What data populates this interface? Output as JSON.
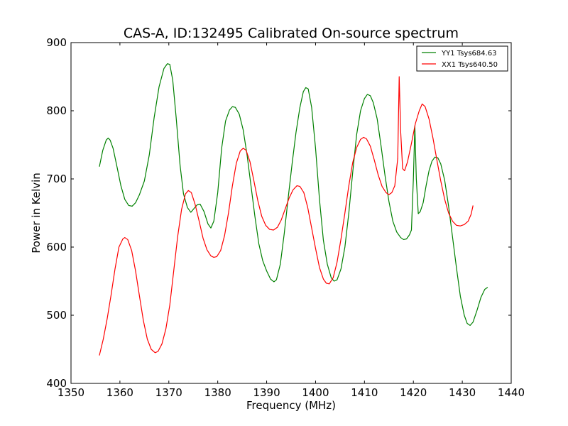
{
  "chart_data": {
    "type": "line",
    "title": "CAS-A, ID:132495 Calibrated On-source spectrum",
    "xlabel": "Frequency (MHz)",
    "ylabel": "Power in Kelvin",
    "xlim": [
      1350,
      1440
    ],
    "ylim": [
      400,
      900
    ],
    "xticks": [
      1350,
      1360,
      1370,
      1380,
      1390,
      1400,
      1410,
      1420,
      1430,
      1440
    ],
    "yticks": [
      400,
      500,
      600,
      700,
      800,
      900
    ],
    "grid": false,
    "legend_position": "top-right",
    "series": [
      {
        "name": "YY1 Tsys684.63",
        "color": "#008000",
        "points": [
          [
            1355.8,
            718
          ],
          [
            1356.5,
            742
          ],
          [
            1357.2,
            757
          ],
          [
            1357.6,
            760
          ],
          [
            1358.0,
            757
          ],
          [
            1358.6,
            745
          ],
          [
            1359.4,
            718
          ],
          [
            1360.2,
            690
          ],
          [
            1361.0,
            670
          ],
          [
            1361.8,
            661
          ],
          [
            1362.5,
            660
          ],
          [
            1363.2,
            665
          ],
          [
            1364.0,
            677
          ],
          [
            1365.0,
            697
          ],
          [
            1366.0,
            735
          ],
          [
            1367.0,
            790
          ],
          [
            1368.0,
            835
          ],
          [
            1369.0,
            862
          ],
          [
            1369.7,
            869
          ],
          [
            1370.2,
            868
          ],
          [
            1370.8,
            845
          ],
          [
            1371.5,
            790
          ],
          [
            1372.3,
            720
          ],
          [
            1373.0,
            678
          ],
          [
            1373.8,
            658
          ],
          [
            1374.5,
            651
          ],
          [
            1375.2,
            657
          ],
          [
            1375.8,
            662
          ],
          [
            1376.4,
            663
          ],
          [
            1377.2,
            652
          ],
          [
            1378.0,
            634
          ],
          [
            1378.6,
            628
          ],
          [
            1379.2,
            638
          ],
          [
            1380.0,
            680
          ],
          [
            1380.8,
            745
          ],
          [
            1381.6,
            785
          ],
          [
            1382.4,
            801
          ],
          [
            1383.0,
            806
          ],
          [
            1383.6,
            805
          ],
          [
            1384.4,
            795
          ],
          [
            1385.2,
            772
          ],
          [
            1386.0,
            735
          ],
          [
            1386.8,
            690
          ],
          [
            1387.6,
            645
          ],
          [
            1388.4,
            605
          ],
          [
            1389.2,
            580
          ],
          [
            1390.0,
            565
          ],
          [
            1390.8,
            553
          ],
          [
            1391.5,
            549
          ],
          [
            1392.0,
            552
          ],
          [
            1392.8,
            575
          ],
          [
            1393.6,
            620
          ],
          [
            1394.4,
            672
          ],
          [
            1395.2,
            722
          ],
          [
            1396.0,
            768
          ],
          [
            1396.8,
            805
          ],
          [
            1397.5,
            828
          ],
          [
            1398.0,
            834
          ],
          [
            1398.5,
            832
          ],
          [
            1399.2,
            805
          ],
          [
            1400.0,
            745
          ],
          [
            1400.8,
            670
          ],
          [
            1401.6,
            610
          ],
          [
            1402.4,
            575
          ],
          [
            1403.2,
            555
          ],
          [
            1403.8,
            550
          ],
          [
            1404.4,
            552
          ],
          [
            1405.2,
            568
          ],
          [
            1406.0,
            600
          ],
          [
            1406.8,
            650
          ],
          [
            1407.6,
            710
          ],
          [
            1408.4,
            765
          ],
          [
            1409.2,
            800
          ],
          [
            1410.0,
            818
          ],
          [
            1410.6,
            824
          ],
          [
            1411.2,
            822
          ],
          [
            1411.8,
            812
          ],
          [
            1412.6,
            788
          ],
          [
            1413.4,
            748
          ],
          [
            1414.2,
            705
          ],
          [
            1415.0,
            667
          ],
          [
            1415.8,
            638
          ],
          [
            1416.6,
            622
          ],
          [
            1417.4,
            614
          ],
          [
            1418.0,
            611
          ],
          [
            1418.6,
            612
          ],
          [
            1419.2,
            618
          ],
          [
            1419.6,
            625
          ],
          [
            1420.0,
            700
          ],
          [
            1420.3,
            778
          ],
          [
            1420.6,
            700
          ],
          [
            1421.0,
            649
          ],
          [
            1421.4,
            652
          ],
          [
            1422.0,
            665
          ],
          [
            1422.6,
            690
          ],
          [
            1423.2,
            712
          ],
          [
            1423.8,
            726
          ],
          [
            1424.4,
            732
          ],
          [
            1425.0,
            731
          ],
          [
            1425.6,
            722
          ],
          [
            1426.4,
            698
          ],
          [
            1427.2,
            660
          ],
          [
            1428.0,
            615
          ],
          [
            1428.8,
            570
          ],
          [
            1429.6,
            528
          ],
          [
            1430.4,
            500
          ],
          [
            1431.0,
            488
          ],
          [
            1431.6,
            485
          ],
          [
            1432.2,
            490
          ],
          [
            1433.0,
            507
          ],
          [
            1433.8,
            526
          ],
          [
            1434.6,
            538
          ],
          [
            1435.2,
            541
          ]
        ]
      },
      {
        "name": "XX1 Tsys640.50",
        "color": "#ff0000",
        "points": [
          [
            1355.8,
            441
          ],
          [
            1356.6,
            465
          ],
          [
            1357.4,
            495
          ],
          [
            1358.2,
            530
          ],
          [
            1359.0,
            568
          ],
          [
            1359.8,
            600
          ],
          [
            1360.6,
            612
          ],
          [
            1361.0,
            614
          ],
          [
            1361.6,
            611
          ],
          [
            1362.4,
            595
          ],
          [
            1363.2,
            565
          ],
          [
            1364.0,
            528
          ],
          [
            1364.8,
            492
          ],
          [
            1365.6,
            465
          ],
          [
            1366.4,
            450
          ],
          [
            1367.2,
            445
          ],
          [
            1367.8,
            447
          ],
          [
            1368.6,
            458
          ],
          [
            1369.4,
            480
          ],
          [
            1370.2,
            515
          ],
          [
            1371.0,
            565
          ],
          [
            1371.8,
            615
          ],
          [
            1372.6,
            655
          ],
          [
            1373.4,
            678
          ],
          [
            1374.0,
            683
          ],
          [
            1374.6,
            680
          ],
          [
            1375.4,
            662
          ],
          [
            1376.2,
            638
          ],
          [
            1377.0,
            613
          ],
          [
            1377.8,
            596
          ],
          [
            1378.6,
            587
          ],
          [
            1379.2,
            585
          ],
          [
            1379.8,
            586
          ],
          [
            1380.6,
            595
          ],
          [
            1381.4,
            617
          ],
          [
            1382.2,
            650
          ],
          [
            1383.0,
            690
          ],
          [
            1383.8,
            723
          ],
          [
            1384.6,
            741
          ],
          [
            1385.2,
            745
          ],
          [
            1385.8,
            742
          ],
          [
            1386.6,
            725
          ],
          [
            1387.4,
            697
          ],
          [
            1388.2,
            668
          ],
          [
            1389.0,
            645
          ],
          [
            1389.8,
            632
          ],
          [
            1390.6,
            626
          ],
          [
            1391.4,
            625
          ],
          [
            1392.2,
            629
          ],
          [
            1393.0,
            640
          ],
          [
            1393.8,
            656
          ],
          [
            1394.6,
            672
          ],
          [
            1395.4,
            684
          ],
          [
            1396.2,
            690
          ],
          [
            1396.8,
            689
          ],
          [
            1397.6,
            680
          ],
          [
            1398.4,
            658
          ],
          [
            1399.2,
            628
          ],
          [
            1400.0,
            598
          ],
          [
            1400.8,
            570
          ],
          [
            1401.6,
            553
          ],
          [
            1402.2,
            547
          ],
          [
            1402.8,
            546
          ],
          [
            1403.6,
            555
          ],
          [
            1404.4,
            578
          ],
          [
            1405.2,
            612
          ],
          [
            1406.0,
            650
          ],
          [
            1406.8,
            690
          ],
          [
            1407.6,
            724
          ],
          [
            1408.4,
            746
          ],
          [
            1409.2,
            758
          ],
          [
            1409.8,
            761
          ],
          [
            1410.4,
            759
          ],
          [
            1411.2,
            748
          ],
          [
            1412.0,
            728
          ],
          [
            1412.8,
            706
          ],
          [
            1413.6,
            689
          ],
          [
            1414.4,
            680
          ],
          [
            1415.0,
            677
          ],
          [
            1415.6,
            680
          ],
          [
            1416.2,
            690
          ],
          [
            1416.8,
            730
          ],
          [
            1417.1,
            850
          ],
          [
            1417.4,
            770
          ],
          [
            1417.8,
            715
          ],
          [
            1418.2,
            712
          ],
          [
            1418.8,
            725
          ],
          [
            1419.6,
            752
          ],
          [
            1420.4,
            781
          ],
          [
            1421.2,
            800
          ],
          [
            1421.8,
            810
          ],
          [
            1422.4,
            806
          ],
          [
            1423.2,
            788
          ],
          [
            1424.0,
            760
          ],
          [
            1424.8,
            728
          ],
          [
            1425.6,
            697
          ],
          [
            1426.4,
            670
          ],
          [
            1427.2,
            650
          ],
          [
            1428.0,
            638
          ],
          [
            1428.8,
            632
          ],
          [
            1429.6,
            631
          ],
          [
            1430.4,
            633
          ],
          [
            1431.2,
            638
          ],
          [
            1431.8,
            648
          ],
          [
            1432.2,
            661
          ]
        ]
      }
    ]
  }
}
